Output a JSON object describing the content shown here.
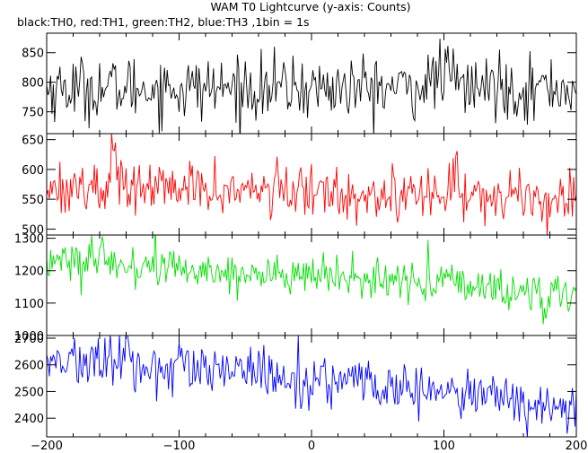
{
  "title": "WAM T0 Lightcurve (y-axis: Counts)",
  "subtitle": "black:TH0, red:TH1, green:TH2, blue:TH3 ,1bin = 1s",
  "chart_data": {
    "type": "line",
    "title": "WAM T0 Lightcurve (y-axis: Counts)",
    "subtitle": "black:TH0, red:TH1, green:TH2, blue:TH3 ,1bin = 1s",
    "xlim": [
      -200,
      200
    ],
    "x_ticks": [
      -200,
      -100,
      0,
      100,
      200
    ],
    "x_tick_labels": [
      "−200",
      "−100",
      "0",
      "100",
      "200"
    ],
    "bin_size_s": 1,
    "panels": [
      {
        "name": "TH0",
        "color": "#000000",
        "ylim": [
          713,
          883
        ],
        "y_ticks": [
          750,
          800,
          850
        ],
        "y_tick_labels": [
          "750",
          "800",
          "850"
        ],
        "trend": [
          [
            -200,
            790
          ],
          [
            200,
            790
          ]
        ],
        "noise_sigma": 27,
        "features": [
          {
            "x": 100,
            "delta": 25,
            "width": 8
          },
          {
            "x": 140,
            "delta": 10,
            "width": 4
          }
        ]
      },
      {
        "name": "TH1",
        "color": "#ff0000",
        "ylim": [
          490,
          660
        ],
        "y_ticks": [
          500,
          550,
          600,
          650
        ],
        "y_tick_labels": [
          "500",
          "550",
          "600",
          "650"
        ],
        "trend": [
          [
            -200,
            572
          ],
          [
            0,
            562
          ],
          [
            200,
            552
          ]
        ],
        "noise_sigma": 22,
        "features": [
          {
            "x": -150,
            "delta": 60,
            "width": 1.5
          },
          {
            "x": 110,
            "delta": 65,
            "width": 1.5
          },
          {
            "x": -145,
            "delta": 30,
            "width": 2
          }
        ]
      },
      {
        "name": "TH2",
        "color": "#00e000",
        "ylim": [
          1000,
          1310
        ],
        "y_ticks": [
          1000,
          1100,
          1200,
          1300
        ],
        "y_tick_labels": [
          "1000",
          "1100",
          "1200",
          "1300"
        ],
        "trend": [
          [
            -200,
            1235
          ],
          [
            -100,
            1205
          ],
          [
            0,
            1180
          ],
          [
            100,
            1160
          ],
          [
            200,
            1125
          ]
        ],
        "noise_sigma": 33,
        "features": [
          {
            "x": 88,
            "delta": 90,
            "width": 1
          },
          {
            "x": 145,
            "delta": -110,
            "width": 1
          },
          {
            "x": 175,
            "delta": -70,
            "width": 1
          }
        ]
      },
      {
        "name": "TH3",
        "color": "#0000ff",
        "ylim": [
          2330,
          2710
        ],
        "y_ticks": [
          2400,
          2500,
          2600,
          2700
        ],
        "y_tick_labels": [
          "2400",
          "2500",
          "2600",
          "2700"
        ],
        "trend": [
          [
            -200,
            2620
          ],
          [
            -100,
            2580
          ],
          [
            0,
            2545
          ],
          [
            100,
            2495
          ],
          [
            200,
            2435
          ]
        ],
        "noise_sigma": 48,
        "features": [
          {
            "x": -140,
            "delta": 70,
            "width": 2
          },
          {
            "x": -55,
            "delta": 60,
            "width": 2
          }
        ]
      }
    ]
  }
}
